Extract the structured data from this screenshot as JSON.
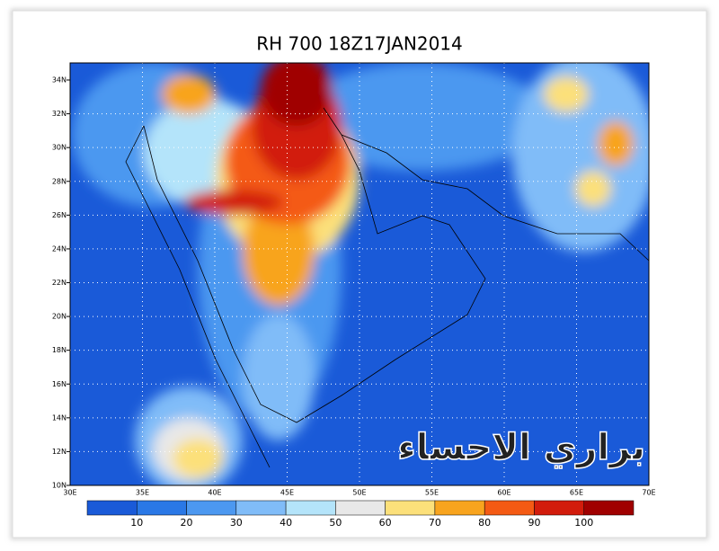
{
  "title": "RH 700 18Z17JAN2014",
  "map": {
    "lat_labels": [
      "34N",
      "32N",
      "30N",
      "28N",
      "26N",
      "24N",
      "22N",
      "20N",
      "18N",
      "16N",
      "14N",
      "12N",
      "10N"
    ],
    "lon_labels": [
      "30E",
      "35E",
      "40E",
      "45E",
      "50E",
      "55E",
      "60E",
      "65E",
      "70E"
    ]
  },
  "colorbar": {
    "colors": [
      "#1a5ad8",
      "#2a78e6",
      "#4c98f0",
      "#80bcf8",
      "#b4e4fa",
      "#e8e8e8",
      "#fce07a",
      "#f8a41e",
      "#f45a14",
      "#d21c0c",
      "#a00000"
    ],
    "labels": [
      10,
      20,
      30,
      40,
      50,
      60,
      70,
      80,
      90,
      100
    ]
  },
  "watermark": "براري الاحساء"
}
